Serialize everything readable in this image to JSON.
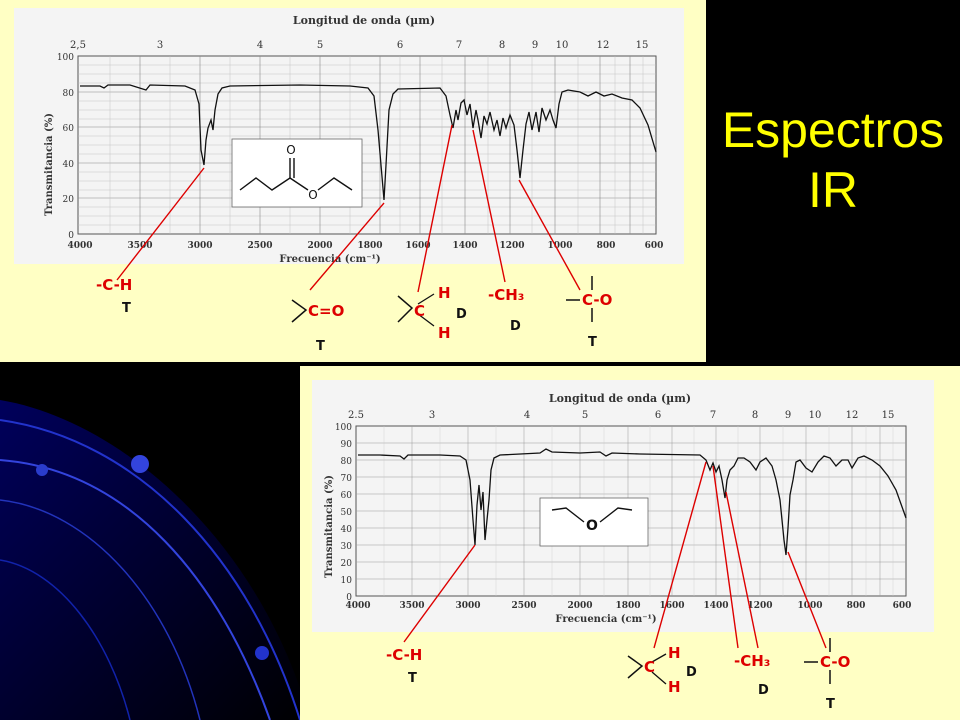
{
  "slide": {
    "title_line1": "Espectros",
    "title_line2": "IR",
    "title_color": "#ffff00",
    "panel_color": "#ffffc4",
    "annotation_color": "#dd0000"
  },
  "spectrum_top": {
    "header": "Longitud de onda (µm)",
    "wavelength_ticks": [
      "2,5",
      "3",
      "4",
      "5",
      "6",
      "7",
      "8",
      "9",
      "10",
      "12",
      "15"
    ],
    "y_label": "Transmitancia (%)",
    "y_ticks": [
      "100",
      "80",
      "60",
      "40",
      "20",
      "0"
    ],
    "freq_ticks": [
      "4000",
      "3500",
      "3000",
      "2500",
      "2000",
      "1800",
      "1600",
      "1400",
      "1200",
      "1000",
      "800",
      "600"
    ],
    "x_label": "Frecuencia (cm⁻¹)",
    "molecule_atoms": [
      "O",
      "O"
    ],
    "labels": {
      "ch": "-C-H",
      "ch_t": "T",
      "co_double": "C=O",
      "co_double_t": "T",
      "ch2_h1": "H",
      "ch2_c": "C",
      "ch2_h2": "H",
      "ch2_d": "D",
      "ch3": "-CH₃",
      "ch3_d": "D",
      "co_single": "C-O",
      "co_single_t": "T"
    }
  },
  "spectrum_bottom": {
    "header": "Longitud de onda (µm)",
    "wavelength_ticks": [
      "2.5",
      "3",
      "4",
      "5",
      "6",
      "7",
      "8",
      "9",
      "10",
      "12",
      "15"
    ],
    "y_label": "Transmitancia (%)",
    "y_ticks": [
      "100",
      "90",
      "80",
      "70",
      "60",
      "50",
      "40",
      "30",
      "20",
      "10",
      "0"
    ],
    "freq_ticks": [
      "4000",
      "3500",
      "3000",
      "2500",
      "2000",
      "1800",
      "1600",
      "1400",
      "1200",
      "1000",
      "800",
      "600"
    ],
    "x_label": "Frecuencia (cm⁻¹)",
    "molecule_atoms": [
      "O"
    ],
    "labels": {
      "ch": "-C-H",
      "ch_t": "T",
      "ch2_h1": "H",
      "ch2_c": "C",
      "ch2_h2": "H",
      "ch2_d": "D",
      "ch3": "-CH₃",
      "ch3_d": "D",
      "co_single": "C-O",
      "co_single_t": "T"
    }
  }
}
